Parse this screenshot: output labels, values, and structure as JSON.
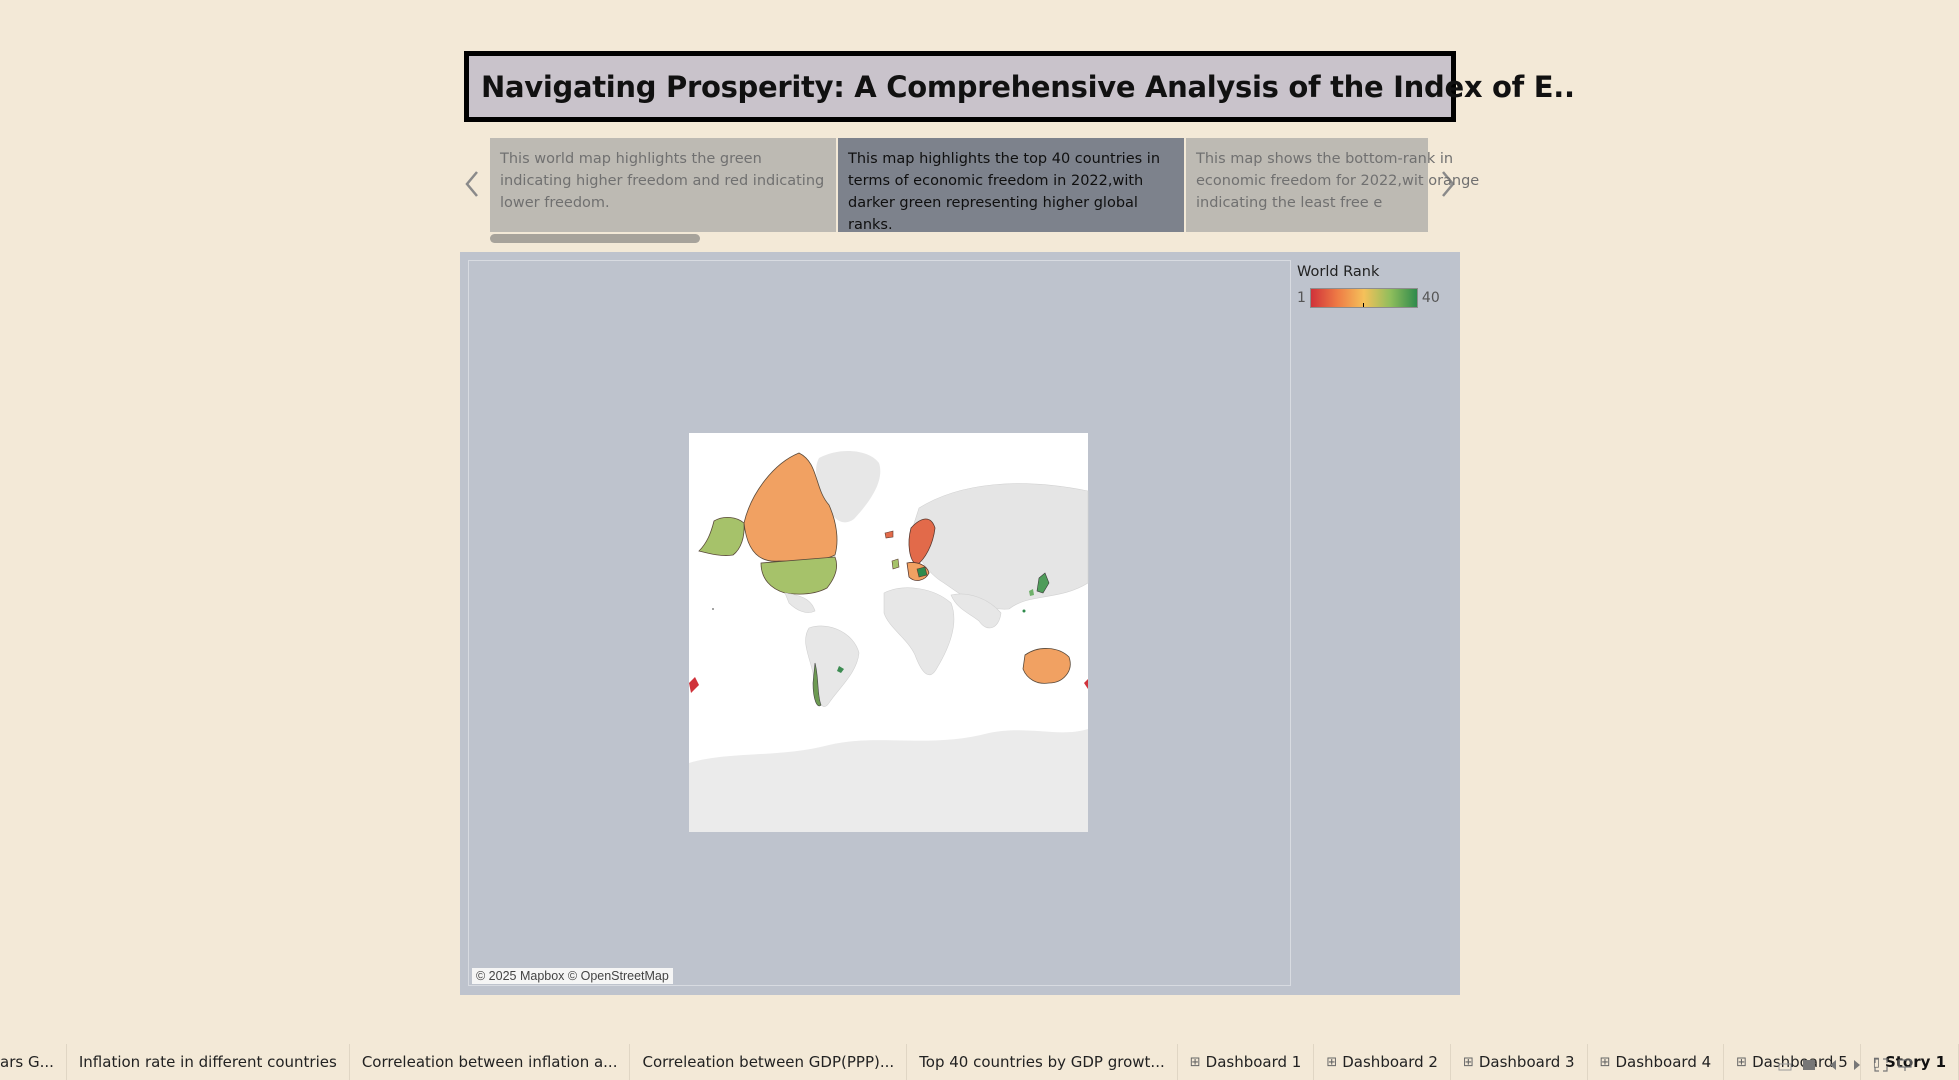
{
  "title": "Navigating Prosperity: A Comprehensive Analysis of the Index of E..",
  "story_points": [
    {
      "text": "This world map highlights the green indicating higher freedom and red indicating lower freedom."
    },
    {
      "text": "This map highlights the top 40 countries in terms of economic freedom in 2022,with darker green representing higher global ranks."
    },
    {
      "text": "This map shows the bottom-rank in economic freedom for 2022,wit orange indicating the least free e"
    }
  ],
  "legend": {
    "title": "World Rank",
    "min": "1",
    "max": "40"
  },
  "map": {
    "attribution": "© 2025 Mapbox © OpenStreetMap"
  },
  "tabs": [
    {
      "label": "ars G..."
    },
    {
      "label": "Inflation rate in different countries"
    },
    {
      "label": "Correleation between inflation a..."
    },
    {
      "label": "Correleation between GDP(PPP)..."
    },
    {
      "label": "Top 40 countries by GDP growt..."
    },
    {
      "label": "Dashboard 1"
    },
    {
      "label": "Dashboard 2"
    },
    {
      "label": "Dashboard 3"
    },
    {
      "label": "Dashboard 4"
    },
    {
      "label": "Dashboard 5"
    },
    {
      "label": "Story 1"
    }
  ],
  "colors": {
    "background": "#f3e9d7",
    "title_bg": "#c9c3cb",
    "active_caption": "#7d828c",
    "inactive_caption": "#bdbab3",
    "dashboard_bg": "#bec3cd",
    "rank_low": "#d0323a",
    "rank_high": "#2f8a4c"
  }
}
